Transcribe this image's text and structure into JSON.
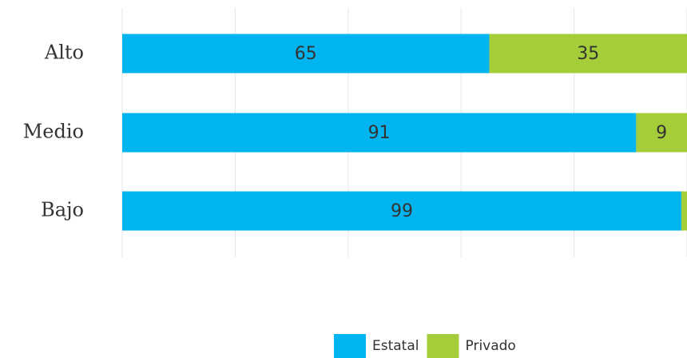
{
  "chart_data": {
    "type": "stacked_barh",
    "categories": [
      "Alto",
      "Medio",
      "Bajo"
    ],
    "series": [
      {
        "name": "Estatal",
        "color": "#00b5ef",
        "values": [
          65,
          91,
          99
        ]
      },
      {
        "name": "Privado",
        "color": "#a5cd39",
        "values": [
          35,
          9,
          1
        ]
      }
    ],
    "xlim": [
      0,
      100
    ],
    "xticks": [
      0,
      20,
      40,
      60,
      80,
      100
    ],
    "grid": true,
    "legend": "bottom"
  }
}
